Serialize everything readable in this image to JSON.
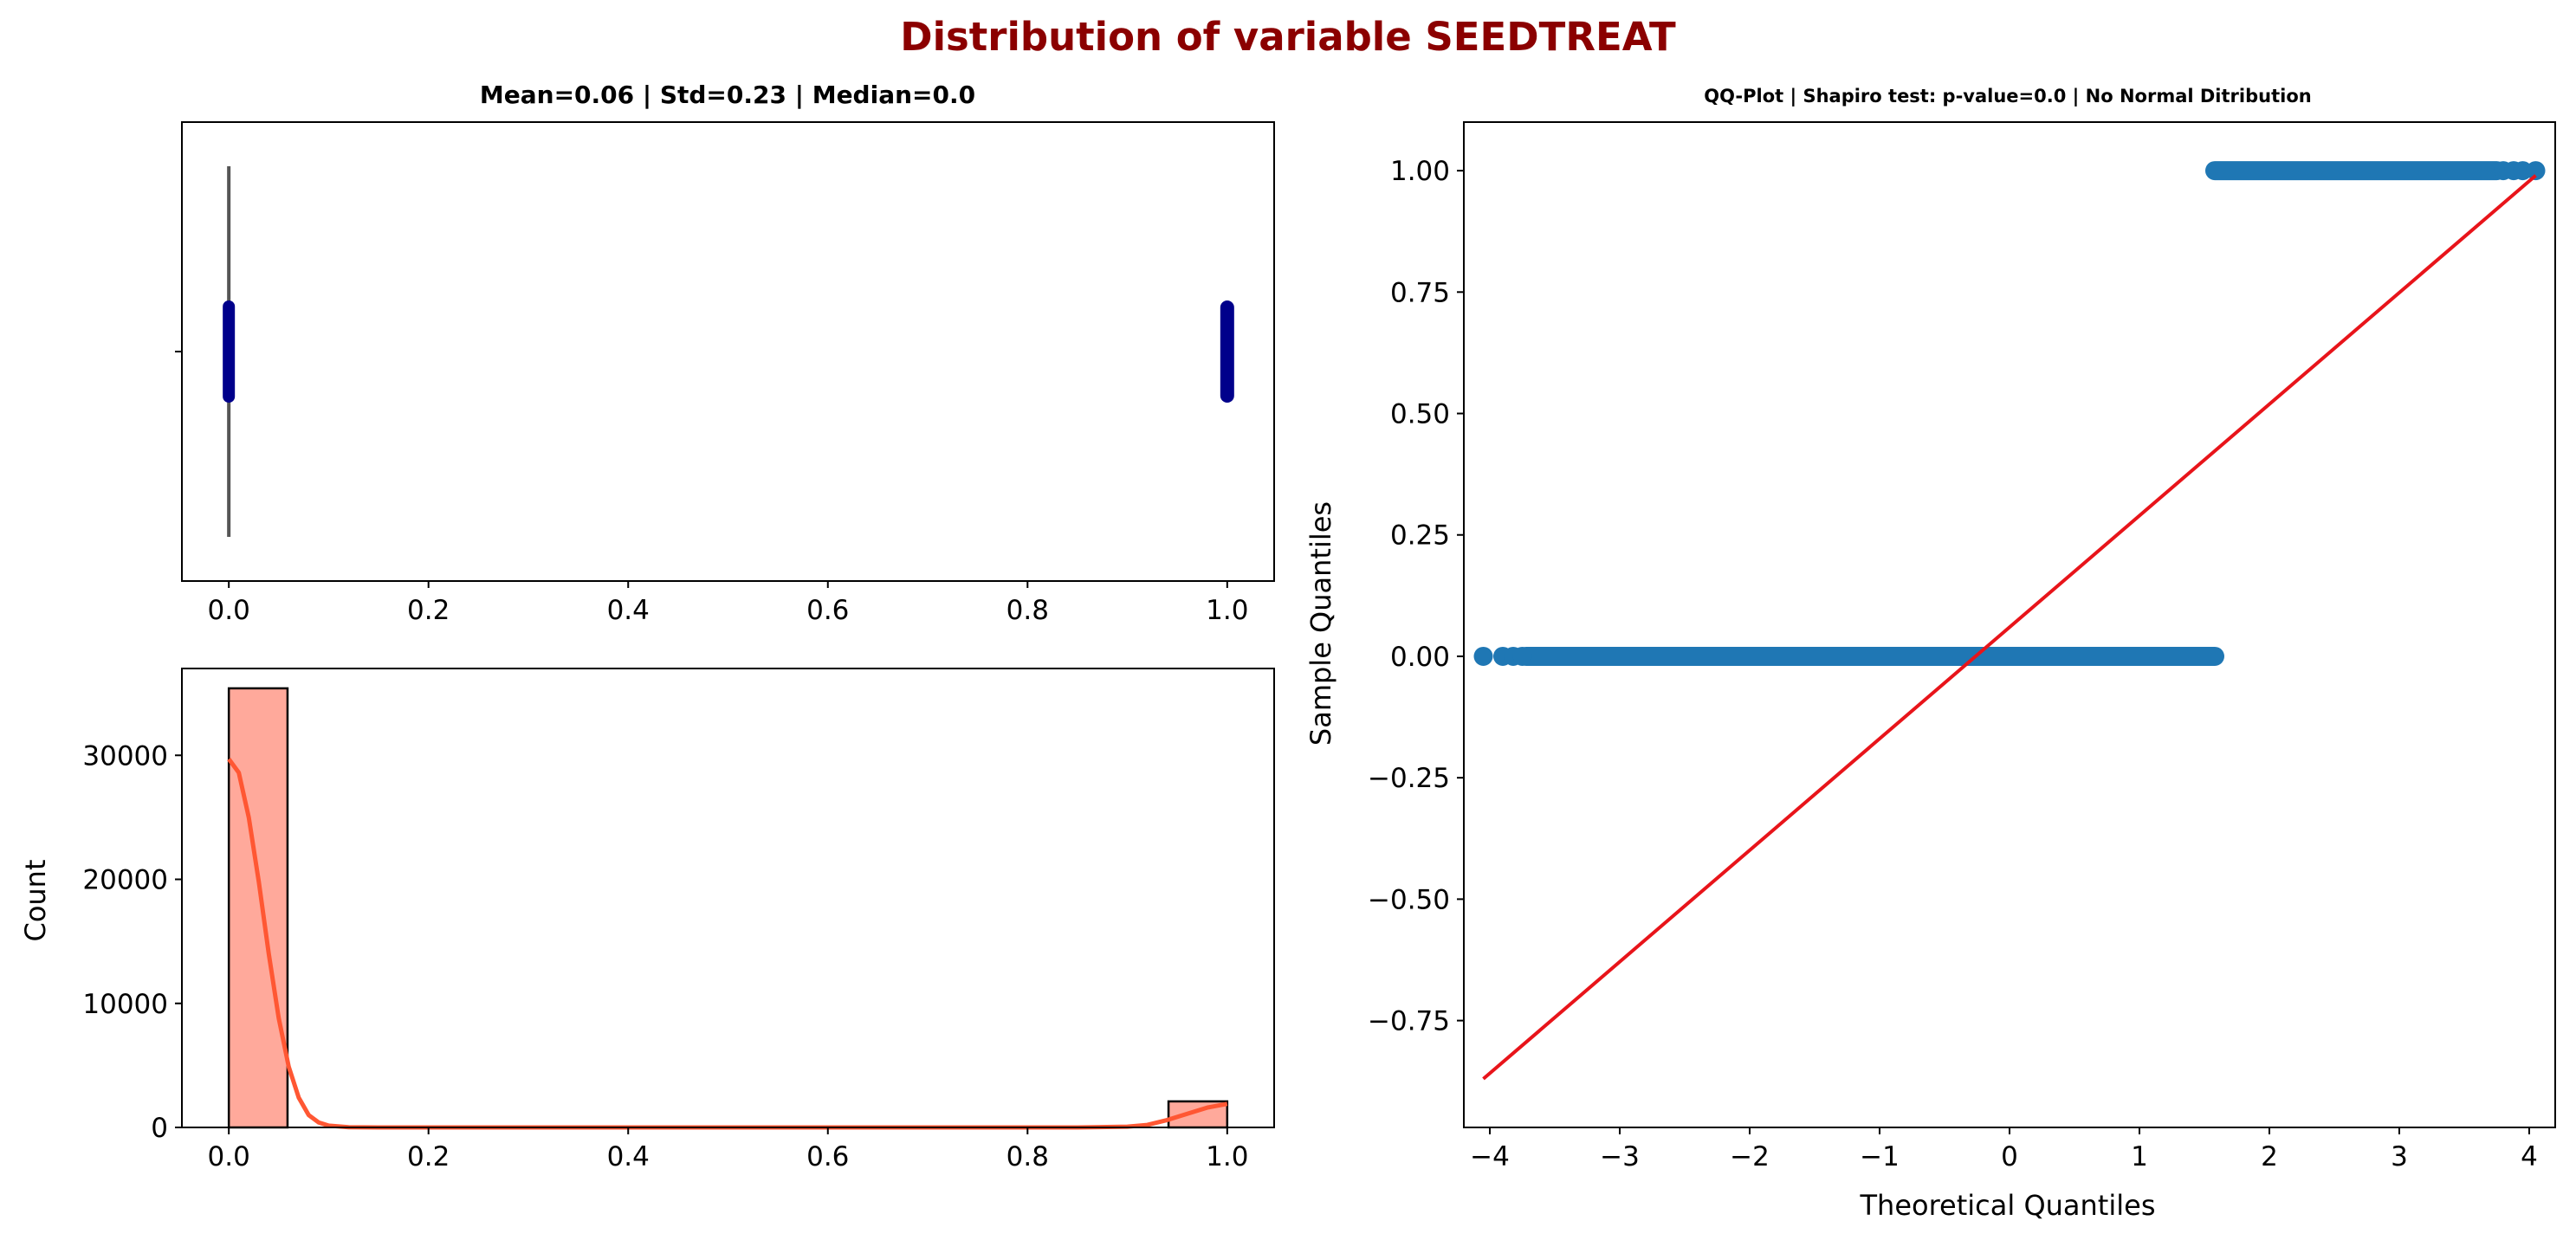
{
  "figure": {
    "suptitle": "Distribution of variable SEEDTREAT",
    "suptitle_color": "#8b0000"
  },
  "chart_data": [
    {
      "id": "boxplot",
      "type": "box",
      "title": "Mean=0.06 | Std=0.23 | Median=0.0",
      "orientation": "horizontal",
      "xlim": [
        -0.047,
        1.047
      ],
      "xticks": [
        0.0,
        0.2,
        0.4,
        0.6,
        0.8,
        1.0
      ],
      "xtick_labels": [
        "0.0",
        "0.2",
        "0.4",
        "0.6",
        "0.8",
        "1.0"
      ],
      "box": {
        "q1": 0.0,
        "median": 0.0,
        "q3": 0.0,
        "whisker_low": 0.0,
        "whisker_high": 0.0
      },
      "outliers_x": [
        1.0
      ],
      "color_box": "#555555",
      "color_outliers": "#00008b"
    },
    {
      "id": "histogram",
      "type": "bar",
      "title": "",
      "xlabel": "",
      "ylabel": "Count",
      "xlim": [
        -0.047,
        1.047
      ],
      "ylim": [
        0,
        37000
      ],
      "xticks": [
        0.0,
        0.2,
        0.4,
        0.6,
        0.8,
        1.0
      ],
      "xtick_labels": [
        "0.0",
        "0.2",
        "0.4",
        "0.6",
        "0.8",
        "1.0"
      ],
      "yticks": [
        0,
        10000,
        20000,
        30000
      ],
      "ytick_labels": [
        "0",
        "10000",
        "20000",
        "30000"
      ],
      "bins": [
        {
          "start": 0.0,
          "end": 0.0588,
          "count": 35400
        },
        {
          "start": 0.9412,
          "end": 1.0,
          "count": 2100
        }
      ],
      "kde": {
        "x": [
          0.0,
          0.01,
          0.02,
          0.03,
          0.04,
          0.05,
          0.06,
          0.07,
          0.08,
          0.09,
          0.1,
          0.12,
          0.15,
          0.2,
          0.3,
          0.5,
          0.7,
          0.85,
          0.9,
          0.92,
          0.94,
          0.96,
          0.98,
          1.0
        ],
        "y": [
          29700,
          28600,
          25000,
          19800,
          14000,
          8800,
          4900,
          2400,
          1000,
          400,
          150,
          20,
          0,
          0,
          0,
          0,
          0,
          0,
          60,
          200,
          600,
          1100,
          1600,
          1900
        ]
      },
      "bar_color": "#ffa99b",
      "kde_color": "#ff5733"
    },
    {
      "id": "qqplot",
      "type": "scatter",
      "title": "QQ-Plot | Shapiro test: p-value=0.0 | No Normal Ditribution",
      "xlabel": "Theoretical Quantiles",
      "ylabel": "Sample Quantiles",
      "xlim": [
        -4.2,
        4.2
      ],
      "ylim": [
        -0.97,
        1.1
      ],
      "xticks": [
        -4,
        -3,
        -2,
        -1,
        0,
        1,
        2,
        3,
        4
      ],
      "xtick_labels": [
        "−4",
        "−3",
        "−2",
        "−1",
        "0",
        "1",
        "2",
        "3",
        "4"
      ],
      "yticks": [
        -0.75,
        -0.5,
        -0.25,
        0.0,
        0.25,
        0.5,
        0.75,
        1.0
      ],
      "ytick_labels": [
        "−0.75",
        "−0.50",
        "−0.25",
        "0.00",
        "0.25",
        "0.50",
        "0.75",
        "1.00"
      ],
      "points_zero": {
        "y": 0.0,
        "x_start": -4.05,
        "x_end": 1.58,
        "isolated_x": [
          -4.05,
          -3.9,
          -3.82,
          -3.75
        ]
      },
      "points_one": {
        "y": 1.0,
        "x_start": 1.58,
        "x_end": 4.05,
        "isolated_x": [
          3.8,
          3.88,
          3.95,
          4.05
        ]
      },
      "reference_line": {
        "x": [
          -4.05,
          4.05
        ],
        "y": [
          -0.87,
          0.99
        ]
      },
      "point_color": "#1f77b4",
      "line_color": "#e8141a"
    }
  ]
}
